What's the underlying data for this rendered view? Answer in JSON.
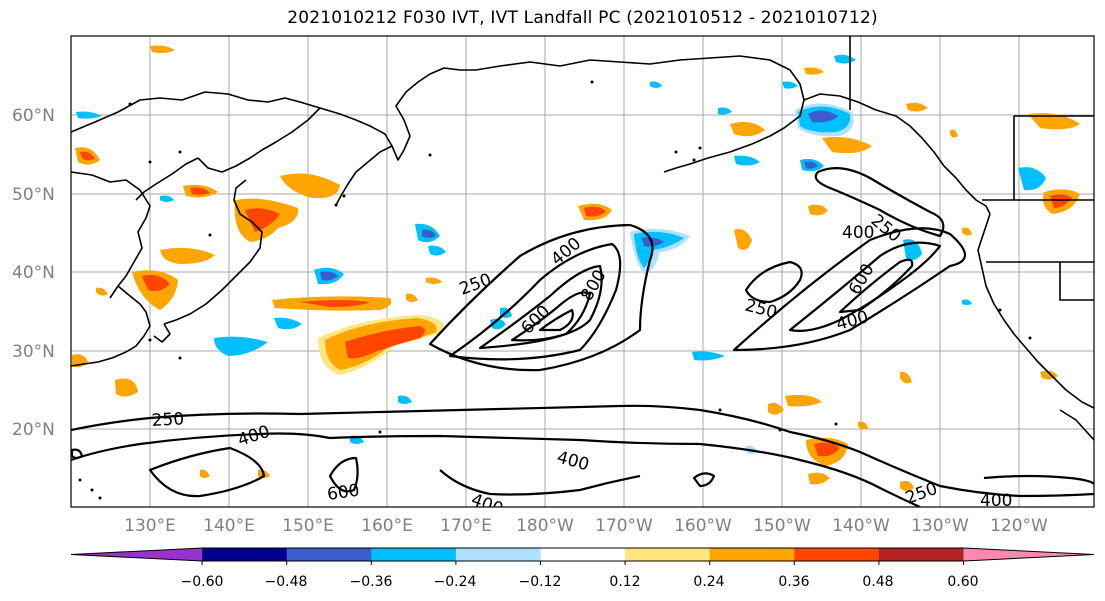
{
  "title": "2021010212 F030 IVT, IVT Landfall PC (2021010512 - 2021010712)",
  "map": {
    "lat_labels": [
      "60°N",
      "50°N",
      "40°N",
      "30°N",
      "20°N"
    ],
    "lon_labels": [
      "130°E",
      "140°E",
      "150°E",
      "160°E",
      "170°E",
      "180°W",
      "170°W",
      "160°W",
      "150°W",
      "140°W",
      "130°W",
      "120°W"
    ],
    "contour_labels": [
      "250",
      "400",
      "600",
      "800",
      "250",
      "400",
      "600",
      "400",
      "250",
      "250",
      "400",
      "400",
      "600",
      "400",
      "250",
      "400"
    ]
  },
  "colorbar": {
    "ticks": [
      "−0.60",
      "−0.48",
      "−0.36",
      "−0.24",
      "−0.12",
      "0.12",
      "0.24",
      "0.36",
      "0.48",
      "0.60"
    ],
    "colors": [
      "#9932cc",
      "#00008b",
      "#3a5ccc",
      "#00bfff",
      "#b0e0ff",
      "#ffffff",
      "#ffe680",
      "#ffa500",
      "#ff4500",
      "#b22222",
      "#ff88b0"
    ]
  },
  "colors": {
    "contour": "#000000",
    "grid": "#a0a0a0",
    "coast": "#000000"
  }
}
